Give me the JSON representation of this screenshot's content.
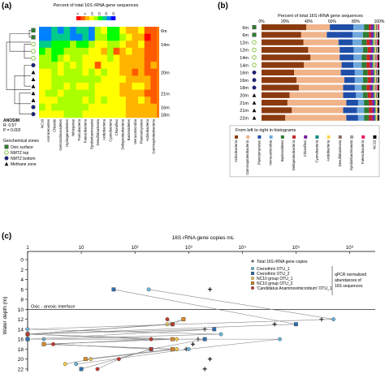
{
  "panels": {
    "a": "(a)",
    "b": "(b)",
    "c": "(c)"
  },
  "chart_data": [
    {
      "type": "heatmap",
      "panel": "a",
      "title": "Percent of total 16S rRNA gene sequences",
      "colorbar_ticks": [
        "0",
        "5",
        "10",
        "15",
        "20",
        "25"
      ],
      "colormap": [
        "#ff0000",
        "#ff5a00",
        "#ffb400",
        "#ffff00",
        "#aaff00",
        "#00ff00",
        "#00cc88",
        "#0080ff",
        "#0000ff"
      ],
      "rows": [
        "6m",
        "",
        "14m",
        "",
        "",
        "",
        "20m",
        "",
        "",
        "21m",
        "",
        "16m",
        "18m"
      ],
      "row_zones": [
        "oxic",
        "oxic",
        "nmtz_top",
        "nmtz_top",
        "nmtz_top",
        "nmtz_bottom",
        "methane",
        "methane",
        "methane",
        "methane",
        "methane",
        "nmtz_bottom",
        "nmtz_bottom"
      ],
      "columns": [
        "NC10",
        "Aminicenantes",
        "Chlorobi",
        "Gemmatimonadetes",
        "Hydrogenedentes",
        "Nitrospirae",
        "Parcubacteria",
        "Patescibacteria",
        "Epsilonbacteraeota",
        "Desulfobacterota",
        "Acidobacteria",
        "Cyanobacteria",
        "Chloroflexi",
        "Deltaproteobacteria",
        "Bacteroidetes",
        "Verrucomicrobia",
        "Planctomycetes",
        "Actinobacteria",
        "Gammaproteobacteria"
      ],
      "values": [
        [
          7,
          7,
          6,
          7,
          6,
          7,
          6,
          6,
          7,
          4,
          3,
          5,
          5,
          3,
          2,
          2,
          3,
          1,
          1
        ],
        [
          7,
          7,
          6,
          6,
          6,
          7,
          7,
          6,
          7,
          4,
          4,
          5,
          5,
          4,
          3,
          2,
          2,
          0,
          1
        ],
        [
          6,
          6,
          5,
          5,
          5,
          4,
          5,
          5,
          4,
          3,
          3,
          4,
          4,
          3,
          2,
          2,
          3,
          1,
          1
        ],
        [
          5,
          4,
          5,
          5,
          4,
          4,
          4,
          4,
          3,
          3,
          2,
          4,
          1,
          2,
          3,
          2,
          2,
          1,
          1
        ],
        [
          4,
          4,
          5,
          4,
          3,
          4,
          4,
          3,
          3,
          3,
          3,
          4,
          3,
          2,
          2,
          2,
          2,
          1,
          1
        ],
        [
          4,
          4,
          4,
          3,
          4,
          3,
          4,
          3,
          3,
          1,
          3,
          3,
          3,
          2,
          2,
          2,
          2,
          1,
          2
        ],
        [
          3,
          3,
          4,
          3,
          4,
          4,
          4,
          3,
          4,
          3,
          4,
          3,
          3,
          2,
          2,
          1,
          2,
          1,
          1
        ],
        [
          3,
          3,
          4,
          4,
          4,
          4,
          4,
          4,
          4,
          4,
          3,
          3,
          3,
          3,
          2,
          2,
          2,
          2,
          1
        ],
        [
          3,
          3,
          4,
          4,
          3,
          4,
          3,
          3,
          4,
          3,
          3,
          3,
          3,
          2,
          2,
          3,
          3,
          2,
          1
        ],
        [
          3,
          4,
          4,
          3,
          4,
          4,
          4,
          4,
          4,
          3,
          3,
          3,
          3,
          2,
          2,
          2,
          2,
          1,
          1
        ],
        [
          3,
          3,
          3,
          4,
          4,
          4,
          4,
          3,
          4,
          3,
          4,
          3,
          3,
          3,
          2,
          2,
          3,
          2,
          1
        ],
        [
          4,
          3,
          4,
          4,
          4,
          4,
          4,
          4,
          3,
          3,
          3,
          3,
          3,
          3,
          2,
          2,
          2,
          2,
          2
        ],
        [
          3,
          3,
          3,
          3,
          4,
          4,
          4,
          3,
          3,
          3,
          3,
          3,
          3,
          3,
          2,
          2,
          2,
          2,
          2
        ]
      ],
      "annotation": {
        "title": "ANOSIM",
        "r": "R: 0.57",
        "p": "P = 0.002"
      },
      "legend": {
        "title": "Geochemical zones",
        "items": [
          {
            "label": "Oxic surface",
            "marker": "square",
            "color": "#2e7d32"
          },
          {
            "label": "NMTZ top",
            "marker": "circle-open",
            "color": "#8bc34a"
          },
          {
            "label": "NMTZ bottom",
            "marker": "circle",
            "color": "#1a237e"
          },
          {
            "label": "Methane zone",
            "marker": "triangle",
            "color": "#000000"
          }
        ]
      }
    },
    {
      "type": "bar",
      "panel": "b",
      "orientation": "horizontal-stacked",
      "title": "Percent of total 16S rRNA gene sequences",
      "x_ticks": [
        "0%",
        "20%",
        "40%",
        "60%",
        "80%",
        "100%"
      ],
      "xlim": [
        0,
        100
      ],
      "categories": [
        "6m",
        "6m",
        "12m",
        "12m",
        "14m",
        "14m",
        "16m",
        "16m",
        "18m",
        "20m",
        "21m",
        "21m",
        "22m"
      ],
      "row_markers": [
        "square",
        "square",
        "circle-open",
        "circle-open",
        "circle-open",
        "circle-open",
        "circle",
        "circle",
        "circle",
        "triangle",
        "triangle",
        "triangle",
        "triangle"
      ],
      "legend_title": "From left to right in histograms",
      "series": [
        {
          "name": "Actinobacteria",
          "color": "#8b3a0f",
          "values": [
            38,
            34,
            36,
            40,
            42,
            36,
            28,
            30,
            32,
            24,
            22,
            26,
            20
          ]
        },
        {
          "name": "Gammaproteobacteria",
          "color": "#f0b38a",
          "values": [
            20,
            22,
            30,
            27,
            25,
            32,
            40,
            41,
            38,
            46,
            50,
            44,
            52
          ]
        },
        {
          "name": "Planctomycetes",
          "color": "#1f4ea8",
          "values": [
            20,
            22,
            12,
            12,
            12,
            10,
            12,
            9,
            10,
            11,
            10,
            12,
            10
          ]
        },
        {
          "name": "Verrucomicrobia",
          "color": "#6fa8dc",
          "values": [
            9,
            9,
            8,
            8,
            7,
            7,
            7,
            7,
            6,
            6,
            5,
            6,
            5
          ]
        },
        {
          "name": "Bacteroidetes",
          "color": "#2e7d32",
          "values": [
            4,
            5,
            4,
            4,
            4,
            4,
            4,
            4,
            4,
            4,
            4,
            4,
            4
          ]
        },
        {
          "name": "Deltaproteobacteria",
          "color": "#c62828",
          "values": [
            2,
            2,
            3,
            3,
            3,
            3,
            3,
            3,
            3,
            3,
            3,
            3,
            3
          ]
        },
        {
          "name": "Chloroflexi",
          "color": "#7b1fa2",
          "values": [
            2,
            2,
            2,
            2,
            2,
            2,
            2,
            2,
            2,
            2,
            2,
            2,
            2
          ]
        },
        {
          "name": "Cyanobacteria",
          "color": "#00897b",
          "values": [
            1,
            1,
            1,
            1,
            1,
            1,
            1,
            1,
            1,
            1,
            1,
            1,
            1
          ]
        },
        {
          "name": "Acidobacteria",
          "color": "#ffd54f",
          "values": [
            1,
            1,
            1,
            1,
            1,
            1,
            1,
            1,
            1,
            1,
            1,
            1,
            1
          ]
        },
        {
          "name": "Desulfobacterota",
          "color": "#8d6e63",
          "values": [
            1,
            1,
            1,
            1,
            1,
            1,
            1,
            1,
            1,
            1,
            1,
            1,
            1
          ]
        },
        {
          "name": "Epsilonbacteraeota",
          "color": "#9e9e9e",
          "values": [
            1,
            1,
            1,
            1,
            1,
            1,
            1,
            1,
            1,
            1,
            0,
            0,
            0
          ]
        },
        {
          "name": "Patescibacteria",
          "color": "#e91e63",
          "values": [
            1,
            0,
            1,
            0,
            1,
            1,
            0,
            0,
            1,
            0,
            0,
            0,
            0
          ]
        },
        {
          "name": "NC10",
          "color": "#000000",
          "values": [
            0,
            1,
            1,
            1,
            1,
            1,
            1,
            1,
            1,
            1,
            1,
            1,
            1
          ]
        }
      ]
    },
    {
      "type": "scatter",
      "panel": "c",
      "title": "16S rRNA gene copies mL",
      "x_scale": "log",
      "x_ticks": [
        "1",
        "10",
        "10²",
        "10³",
        "10⁴",
        "10⁵",
        "10⁶"
      ],
      "xlim": [
        1,
        3000000
      ],
      "ylabel": "Water depth (m)",
      "y_ticks": [
        "0",
        "2",
        "4",
        "6",
        "8",
        "10",
        "12",
        "14",
        "16",
        "18",
        "20",
        "22"
      ],
      "ylim": [
        0,
        22.5
      ],
      "reference_line": {
        "y": 10,
        "label": "Oxic - anoxic interface"
      },
      "legend_group_label": "qPCR normalized abundances of 16S sequences",
      "series": [
        {
          "name": "Total 16S rRNA gene copies",
          "marker": "plus",
          "color": "#000000",
          "x": [
            2500,
            300000,
            40000,
            2000,
            1500,
            1200,
            900,
            2500,
            2000
          ],
          "y": [
            6,
            12,
            13,
            14,
            16,
            17,
            18,
            20,
            22
          ]
        },
        {
          "name": "Crenothrix OTU_1",
          "marker": "circle",
          "color": "#6cb5d8",
          "x": [
            180,
            500000,
            1,
            4000,
            2,
            50000,
            1000,
            8
          ],
          "y": [
            6,
            12,
            14,
            15,
            16,
            16,
            18,
            21
          ]
        },
        {
          "name": "Crenothrix OTU_2",
          "marker": "square",
          "color": "#2f6fb0",
          "x": [
            40,
            100000,
            1,
            3000,
            1,
            2000,
            200,
            10
          ],
          "y": [
            6,
            13,
            15,
            14,
            16,
            16,
            18,
            22
          ]
        },
        {
          "name": "NC10 group OTU_1",
          "marker": "circle",
          "color": "#f3c94b",
          "x": [
            800,
            400,
            1,
            600,
            2,
            600,
            15,
            5
          ],
          "y": [
            12,
            13,
            15,
            16,
            17,
            18,
            20,
            21
          ]
        },
        {
          "name": "NC10 group OTU_2",
          "marker": "square",
          "color": "#e08a25",
          "x": [
            800,
            500,
            1,
            500,
            2,
            500,
            12
          ],
          "y": [
            12,
            13,
            15,
            16,
            17,
            18,
            20
          ]
        },
        {
          "name": "'Candidatus Anammoximicrobium' OTU_1",
          "marker": "circle",
          "color": "#c0392b",
          "x": [
            400,
            500,
            1,
            200,
            3,
            200,
            50,
            20
          ],
          "y": [
            12,
            13,
            15,
            16,
            17,
            18,
            20,
            22
          ]
        }
      ]
    }
  ]
}
